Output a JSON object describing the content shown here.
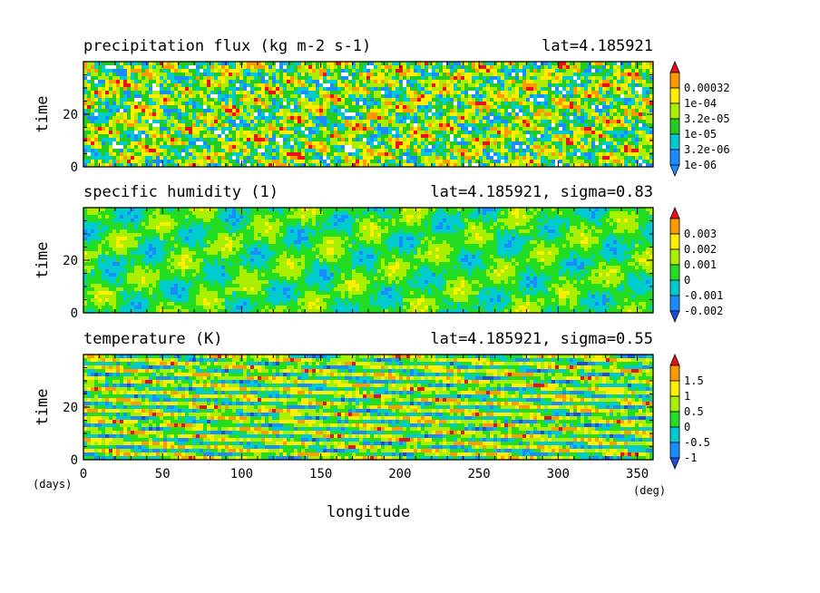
{
  "figure": {
    "xlabel": "longitude",
    "x_unit": "(deg)",
    "y_unit": "(days)"
  },
  "chart_data": [
    {
      "type": "heatmap",
      "title": "precipitation flux (kg m-2 s-1)",
      "subtitle": "lat=4.185921",
      "ylabel": "time",
      "xlim": [
        0,
        360
      ],
      "ylim": [
        0,
        40
      ],
      "x_ticks": [
        0,
        50,
        100,
        150,
        200,
        250,
        300,
        350
      ],
      "y_ticks": [
        0,
        20
      ],
      "colorbar": {
        "labels": [
          "1e-06",
          "3.2e-06",
          "1e-05",
          "3.2e-05",
          "1e-04",
          "0.00032"
        ],
        "colors": [
          "#ffffff",
          "#1a8cff",
          "#00ccd0",
          "#22cc22",
          "#aaee00",
          "#ffee00",
          "#ff9900",
          "#e8121a"
        ],
        "below_colorbar_white": true
      }
    },
    {
      "type": "heatmap",
      "title": "specific humidity (1)",
      "subtitle": "lat=4.185921, sigma=0.83",
      "ylabel": "time",
      "xlim": [
        0,
        360
      ],
      "ylim": [
        0,
        40
      ],
      "x_ticks": [
        0,
        50,
        100,
        150,
        200,
        250,
        300,
        350
      ],
      "y_ticks": [
        0,
        20
      ],
      "colorbar": {
        "labels": [
          "-0.002",
          "-0.001",
          "0",
          "0.001",
          "0.002",
          "0.003"
        ],
        "colors": [
          "#1a4fe0",
          "#1a8cff",
          "#00ccd0",
          "#22dd22",
          "#aaee00",
          "#ffee00",
          "#ff9900",
          "#e8121a"
        ]
      }
    },
    {
      "type": "heatmap",
      "title": "temperature (K)",
      "subtitle": "lat=4.185921, sigma=0.55",
      "ylabel": "time",
      "xlim": [
        0,
        360
      ],
      "ylim": [
        0,
        40
      ],
      "x_ticks": [
        0,
        50,
        100,
        150,
        200,
        250,
        300,
        350
      ],
      "y_ticks": [
        0,
        20
      ],
      "colorbar": {
        "labels": [
          "-1",
          "-0.5",
          "0",
          "0.5",
          "1",
          "1.5"
        ],
        "colors": [
          "#1a4fe0",
          "#1a8cff",
          "#00ccd0",
          "#22dd22",
          "#aaee00",
          "#ffee00",
          "#ff9900",
          "#e8121a"
        ]
      }
    }
  ]
}
